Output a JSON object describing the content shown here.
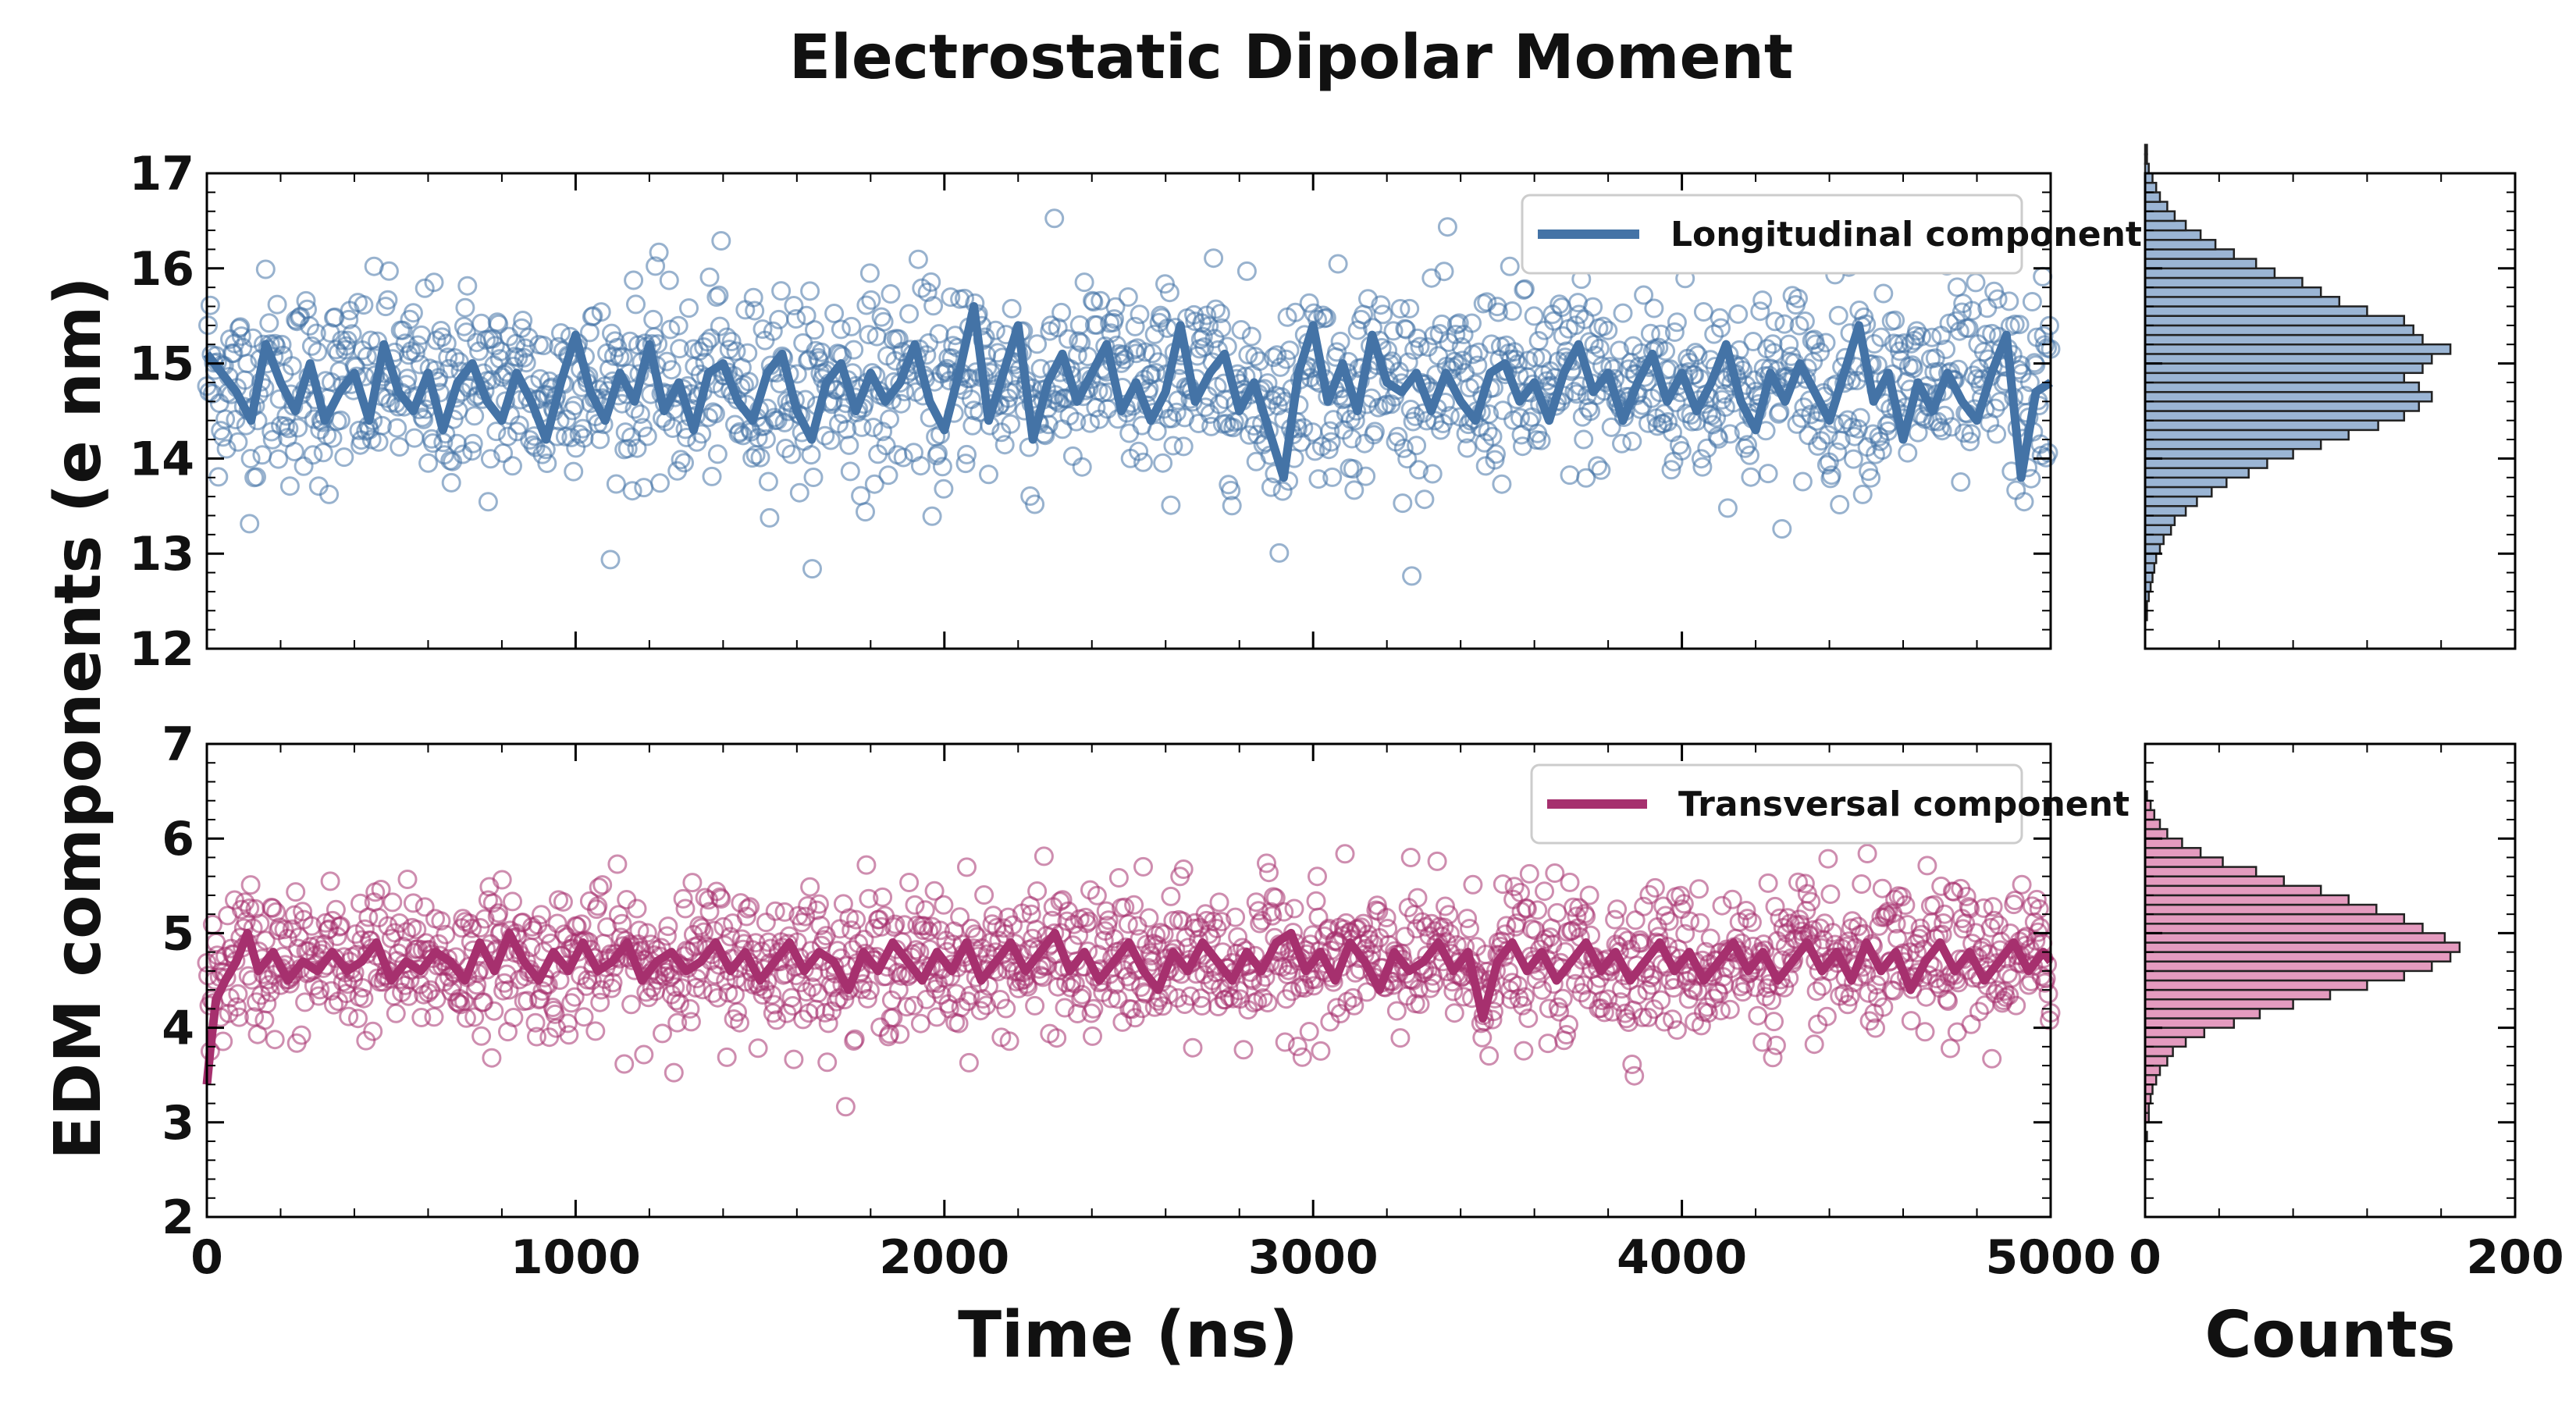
{
  "chart_data": {
    "type": "scatter",
    "title": "Electrostatic Dipolar Moment",
    "xlabel": "Time (ns)",
    "ylabel": "EDM components (e nm)",
    "hist_xlabel": "Counts",
    "grid": false,
    "legend_placement": "top-right",
    "panels": [
      {
        "series_name": "Longitudinal component",
        "color": "#4473a6",
        "hist_fill": "#9bb5d4",
        "xlim": [
          0,
          5000
        ],
        "ylim": [
          12,
          17
        ],
        "yticks": [
          12,
          13,
          14,
          15,
          16,
          17
        ],
        "xticks": [
          0,
          1000,
          2000,
          3000,
          4000,
          5000
        ],
        "mean": 14.8,
        "sd": 0.6,
        "running_average": [
          [
            0,
            15.1
          ],
          [
            40,
            14.9
          ],
          [
            80,
            14.7
          ],
          [
            120,
            14.4
          ],
          [
            160,
            15.2
          ],
          [
            200,
            14.8
          ],
          [
            240,
            14.5
          ],
          [
            280,
            15.0
          ],
          [
            320,
            14.4
          ],
          [
            360,
            14.7
          ],
          [
            400,
            14.9
          ],
          [
            440,
            14.4
          ],
          [
            480,
            15.2
          ],
          [
            520,
            14.7
          ],
          [
            560,
            14.5
          ],
          [
            600,
            14.9
          ],
          [
            640,
            14.3
          ],
          [
            680,
            14.8
          ],
          [
            720,
            15.0
          ],
          [
            760,
            14.6
          ],
          [
            800,
            14.4
          ],
          [
            840,
            14.9
          ],
          [
            880,
            14.6
          ],
          [
            920,
            14.2
          ],
          [
            960,
            14.8
          ],
          [
            1000,
            15.3
          ],
          [
            1040,
            14.7
          ],
          [
            1080,
            14.4
          ],
          [
            1120,
            14.9
          ],
          [
            1160,
            14.6
          ],
          [
            1200,
            15.2
          ],
          [
            1240,
            14.5
          ],
          [
            1280,
            14.8
          ],
          [
            1320,
            14.3
          ],
          [
            1360,
            14.9
          ],
          [
            1400,
            15.0
          ],
          [
            1440,
            14.6
          ],
          [
            1480,
            14.4
          ],
          [
            1520,
            14.9
          ],
          [
            1560,
            15.1
          ],
          [
            1600,
            14.5
          ],
          [
            1640,
            14.2
          ],
          [
            1680,
            14.8
          ],
          [
            1720,
            15.0
          ],
          [
            1760,
            14.5
          ],
          [
            1800,
            14.9
          ],
          [
            1840,
            14.6
          ],
          [
            1880,
            14.8
          ],
          [
            1920,
            15.2
          ],
          [
            1960,
            14.6
          ],
          [
            2000,
            14.3
          ],
          [
            2040,
            14.9
          ],
          [
            2080,
            15.6
          ],
          [
            2120,
            14.4
          ],
          [
            2160,
            14.9
          ],
          [
            2200,
            15.4
          ],
          [
            2240,
            14.2
          ],
          [
            2280,
            14.8
          ],
          [
            2320,
            15.1
          ],
          [
            2360,
            14.6
          ],
          [
            2400,
            14.9
          ],
          [
            2440,
            15.2
          ],
          [
            2480,
            14.5
          ],
          [
            2520,
            14.8
          ],
          [
            2560,
            14.4
          ],
          [
            2600,
            14.7
          ],
          [
            2640,
            15.4
          ],
          [
            2680,
            14.6
          ],
          [
            2720,
            14.9
          ],
          [
            2760,
            15.1
          ],
          [
            2800,
            14.5
          ],
          [
            2840,
            14.8
          ],
          [
            2880,
            14.3
          ],
          [
            2920,
            13.8
          ],
          [
            2960,
            14.9
          ],
          [
            3000,
            15.4
          ],
          [
            3040,
            14.6
          ],
          [
            3080,
            15.0
          ],
          [
            3120,
            14.5
          ],
          [
            3160,
            15.3
          ],
          [
            3200,
            14.8
          ],
          [
            3240,
            14.7
          ],
          [
            3280,
            14.9
          ],
          [
            3320,
            14.5
          ],
          [
            3360,
            14.9
          ],
          [
            3400,
            14.6
          ],
          [
            3440,
            14.4
          ],
          [
            3480,
            14.9
          ],
          [
            3520,
            15.0
          ],
          [
            3560,
            14.6
          ],
          [
            3600,
            14.8
          ],
          [
            3640,
            14.4
          ],
          [
            3680,
            14.9
          ],
          [
            3720,
            15.2
          ],
          [
            3760,
            14.7
          ],
          [
            3800,
            14.9
          ],
          [
            3840,
            14.4
          ],
          [
            3880,
            14.8
          ],
          [
            3920,
            15.1
          ],
          [
            3960,
            14.6
          ],
          [
            4000,
            14.9
          ],
          [
            4040,
            14.5
          ],
          [
            4080,
            14.8
          ],
          [
            4120,
            15.2
          ],
          [
            4160,
            14.6
          ],
          [
            4200,
            14.3
          ],
          [
            4240,
            14.9
          ],
          [
            4280,
            14.6
          ],
          [
            4320,
            15.0
          ],
          [
            4360,
            14.7
          ],
          [
            4400,
            14.4
          ],
          [
            4440,
            14.9
          ],
          [
            4480,
            15.4
          ],
          [
            4520,
            14.6
          ],
          [
            4560,
            14.9
          ],
          [
            4600,
            14.2
          ],
          [
            4640,
            14.8
          ],
          [
            4680,
            14.5
          ],
          [
            4720,
            14.9
          ],
          [
            4760,
            14.6
          ],
          [
            4800,
            14.4
          ],
          [
            4840,
            14.9
          ],
          [
            4880,
            15.3
          ],
          [
            4920,
            13.8
          ],
          [
            4960,
            14.7
          ],
          [
            5000,
            14.8
          ]
        ],
        "histogram": {
          "bin_start": 12.2,
          "bin_width": 0.1,
          "counts": [
            0,
            1,
            1,
            2,
            3,
            4,
            5,
            6,
            8,
            10,
            14,
            16,
            22,
            28,
            36,
            44,
            56,
            66,
            80,
            95,
            110,
            126,
            140,
            148,
            155,
            148,
            140,
            150,
            155,
            165,
            150,
            145,
            140,
            120,
            105,
            95,
            85,
            70,
            60,
            48,
            38,
            30,
            22,
            16,
            12,
            8,
            6,
            4,
            2,
            1,
            1
          ]
        }
      },
      {
        "series_name": "Transversal component",
        "color": "#a6306e",
        "hist_fill": "#e49bbf",
        "xlim": [
          0,
          5000
        ],
        "ylim": [
          2,
          7
        ],
        "yticks": [
          2,
          3,
          4,
          5,
          6,
          7
        ],
        "xticks": [
          0,
          1000,
          2000,
          3000,
          4000,
          5000
        ],
        "mean": 4.7,
        "sd": 0.45,
        "running_average": [
          [
            0,
            3.4
          ],
          [
            10,
            3.8
          ],
          [
            25,
            4.3
          ],
          [
            50,
            4.5
          ],
          [
            80,
            4.7
          ],
          [
            110,
            5.0
          ],
          [
            140,
            4.6
          ],
          [
            180,
            4.8
          ],
          [
            220,
            4.5
          ],
          [
            260,
            4.7
          ],
          [
            300,
            4.6
          ],
          [
            340,
            4.8
          ],
          [
            380,
            4.6
          ],
          [
            420,
            4.7
          ],
          [
            460,
            4.9
          ],
          [
            500,
            4.5
          ],
          [
            540,
            4.7
          ],
          [
            580,
            4.6
          ],
          [
            620,
            4.8
          ],
          [
            660,
            4.7
          ],
          [
            700,
            4.5
          ],
          [
            740,
            4.9
          ],
          [
            780,
            4.6
          ],
          [
            820,
            5.0
          ],
          [
            860,
            4.7
          ],
          [
            900,
            4.5
          ],
          [
            940,
            4.8
          ],
          [
            980,
            4.6
          ],
          [
            1020,
            4.9
          ],
          [
            1060,
            4.6
          ],
          [
            1100,
            4.7
          ],
          [
            1140,
            4.9
          ],
          [
            1180,
            4.5
          ],
          [
            1220,
            4.7
          ],
          [
            1260,
            4.8
          ],
          [
            1300,
            4.6
          ],
          [
            1340,
            4.7
          ],
          [
            1380,
            4.9
          ],
          [
            1420,
            4.6
          ],
          [
            1460,
            4.8
          ],
          [
            1500,
            4.5
          ],
          [
            1540,
            4.7
          ],
          [
            1580,
            4.9
          ],
          [
            1620,
            4.6
          ],
          [
            1660,
            4.8
          ],
          [
            1700,
            4.7
          ],
          [
            1740,
            4.4
          ],
          [
            1780,
            4.8
          ],
          [
            1820,
            4.6
          ],
          [
            1860,
            4.9
          ],
          [
            1900,
            4.7
          ],
          [
            1940,
            4.5
          ],
          [
            1980,
            4.8
          ],
          [
            2020,
            4.6
          ],
          [
            2060,
            4.9
          ],
          [
            2100,
            4.5
          ],
          [
            2140,
            4.7
          ],
          [
            2180,
            4.9
          ],
          [
            2220,
            4.6
          ],
          [
            2260,
            4.8
          ],
          [
            2300,
            5.0
          ],
          [
            2340,
            4.6
          ],
          [
            2380,
            4.8
          ],
          [
            2420,
            4.5
          ],
          [
            2460,
            4.7
          ],
          [
            2500,
            4.9
          ],
          [
            2540,
            4.6
          ],
          [
            2580,
            4.4
          ],
          [
            2620,
            4.8
          ],
          [
            2660,
            4.6
          ],
          [
            2700,
            4.9
          ],
          [
            2740,
            4.7
          ],
          [
            2780,
            4.5
          ],
          [
            2820,
            4.8
          ],
          [
            2860,
            4.6
          ],
          [
            2900,
            4.9
          ],
          [
            2940,
            5.0
          ],
          [
            2980,
            4.6
          ],
          [
            3020,
            4.8
          ],
          [
            3060,
            4.5
          ],
          [
            3100,
            4.9
          ],
          [
            3140,
            4.7
          ],
          [
            3180,
            4.4
          ],
          [
            3220,
            4.8
          ],
          [
            3260,
            4.6
          ],
          [
            3300,
            4.7
          ],
          [
            3340,
            4.9
          ],
          [
            3380,
            4.6
          ],
          [
            3420,
            4.8
          ],
          [
            3460,
            4.1
          ],
          [
            3500,
            4.7
          ],
          [
            3540,
            4.9
          ],
          [
            3580,
            4.6
          ],
          [
            3620,
            4.8
          ],
          [
            3660,
            4.5
          ],
          [
            3700,
            4.7
          ],
          [
            3740,
            4.9
          ],
          [
            3780,
            4.6
          ],
          [
            3820,
            4.8
          ],
          [
            3860,
            4.5
          ],
          [
            3900,
            4.7
          ],
          [
            3940,
            4.9
          ],
          [
            3980,
            4.6
          ],
          [
            4020,
            4.8
          ],
          [
            4060,
            4.5
          ],
          [
            4100,
            4.7
          ],
          [
            4140,
            4.9
          ],
          [
            4180,
            4.6
          ],
          [
            4220,
            4.8
          ],
          [
            4260,
            4.5
          ],
          [
            4300,
            4.7
          ],
          [
            4340,
            4.9
          ],
          [
            4380,
            4.6
          ],
          [
            4420,
            4.8
          ],
          [
            4460,
            4.5
          ],
          [
            4500,
            4.9
          ],
          [
            4540,
            4.6
          ],
          [
            4580,
            4.8
          ],
          [
            4620,
            4.4
          ],
          [
            4660,
            4.7
          ],
          [
            4700,
            4.9
          ],
          [
            4740,
            4.6
          ],
          [
            4780,
            4.8
          ],
          [
            4820,
            4.5
          ],
          [
            4860,
            4.7
          ],
          [
            4900,
            4.9
          ],
          [
            4940,
            4.6
          ],
          [
            4980,
            4.8
          ],
          [
            5000,
            4.7
          ]
        ],
        "histogram": {
          "bin_start": 2.7,
          "bin_width": 0.1,
          "counts": [
            0,
            1,
            0,
            2,
            2,
            3,
            4,
            6,
            8,
            12,
            15,
            22,
            32,
            48,
            62,
            80,
            100,
            120,
            140,
            155,
            165,
            170,
            162,
            150,
            140,
            125,
            110,
            95,
            75,
            60,
            42,
            30,
            20,
            12,
            8,
            5,
            3,
            1
          ]
        }
      }
    ]
  }
}
